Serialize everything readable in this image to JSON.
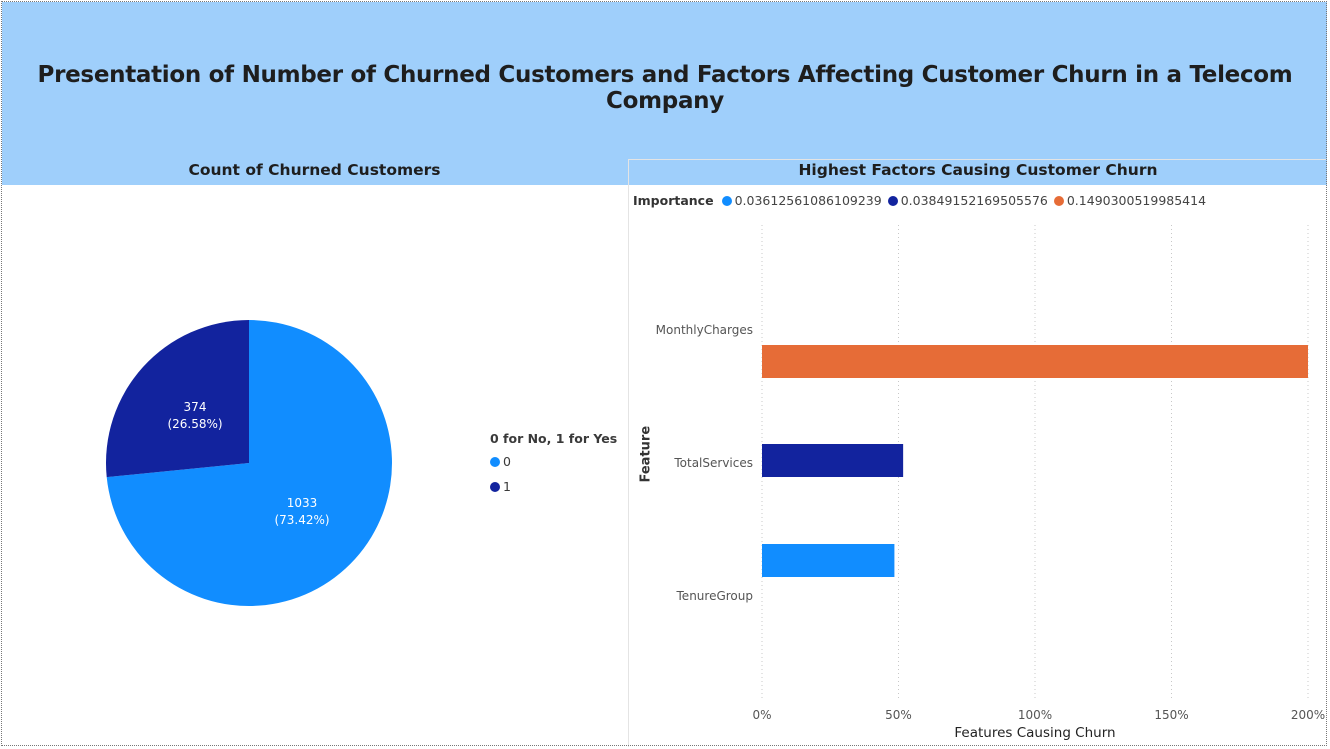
{
  "title": "Presentation of Number of Churned Customers and Factors Affecting Customer Churn in a Telecom Company",
  "pie_panel": {
    "title": "Count of Churned Customers",
    "legend_title": "0 for No, 1 for Yes",
    "legend_items": [
      "0",
      "1"
    ],
    "slice_labels": [
      {
        "value": "1033",
        "pct": "(73.42%)"
      },
      {
        "value": "374",
        "pct": "(26.58%)"
      }
    ]
  },
  "bar_panel": {
    "title": "Highest Factors Causing Customer Churn",
    "legend_title": "Importance",
    "legend_items": [
      "0.03612561086109239",
      "0.03849152169505576",
      "0.1490300519985414"
    ],
    "xlabel": "Features Causing Churn",
    "ylabel": "Feature",
    "x_ticks": [
      "0%",
      "50%",
      "100%",
      "150%",
      "200%"
    ],
    "categories": [
      "MonthlyCharges",
      "TotalServices",
      "TenureGroup"
    ]
  },
  "colors": {
    "banner": "#9fcffb",
    "light_blue": "#118dff",
    "dark_blue": "#12239e",
    "orange": "#e66c37"
  },
  "chart_data": [
    {
      "type": "pie",
      "title": "Count of Churned Customers",
      "legend_title": "0 for No, 1 for Yes",
      "categories": [
        "0",
        "1"
      ],
      "values": [
        1033,
        374
      ],
      "percentages": [
        73.42,
        26.58
      ],
      "colors": [
        "#118dff",
        "#12239e"
      ]
    },
    {
      "type": "bar",
      "orientation": "horizontal",
      "title": "Highest Factors Causing Customer Churn",
      "xlabel": "Features Causing Churn",
      "ylabel": "Feature",
      "legend_title": "Importance",
      "xlim": [
        0,
        200
      ],
      "x_unit": "%",
      "categories": [
        "MonthlyCharges",
        "TotalServices",
        "TenureGroup"
      ],
      "values": [
        200,
        51.7,
        48.5
      ],
      "series_legend": [
        "0.1490300519985414",
        "0.03849152169505576",
        "0.03612561086109239"
      ],
      "colors": [
        "#e66c37",
        "#12239e",
        "#118dff"
      ],
      "grid": true,
      "legend_position": "top-left"
    }
  ]
}
